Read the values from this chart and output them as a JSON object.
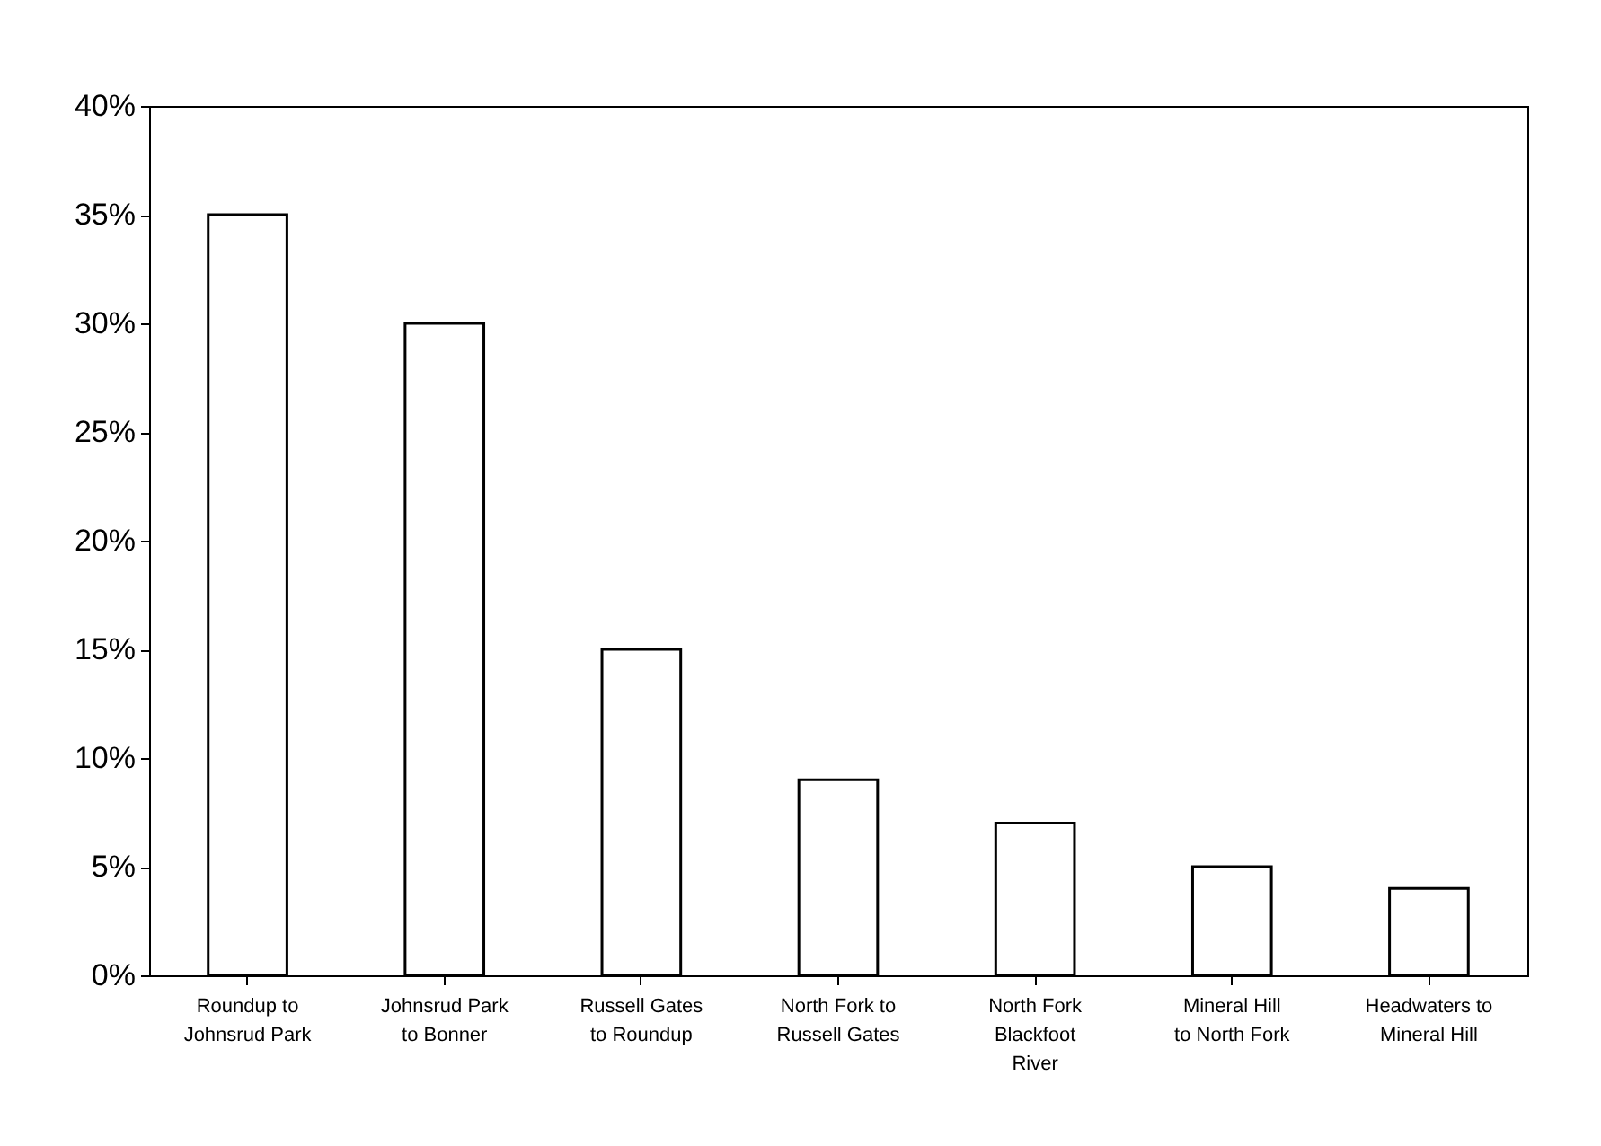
{
  "chart_data": {
    "type": "bar",
    "categories": [
      "Roundup to Johnsrud Park",
      "Johnsrud Park to Bonner",
      "Russell Gates to Roundup",
      "North Fork to Russell Gates",
      "North Fork Blackfoot River",
      "Mineral Hill to North Fork",
      "Headwaters to Mineral Hill"
    ],
    "values": [
      35,
      30,
      15,
      9,
      7,
      5,
      4
    ],
    "color": "#ffffff",
    "ylim": [
      0,
      40
    ],
    "yticks": [
      {
        "value": 0,
        "label": "0%"
      },
      {
        "value": 5,
        "label": "5%"
      },
      {
        "value": 10,
        "label": "10%"
      },
      {
        "value": 15,
        "label": "15%"
      },
      {
        "value": 20,
        "label": "20%"
      },
      {
        "value": 25,
        "label": "25%"
      },
      {
        "value": 30,
        "label": "30%"
      },
      {
        "value": 35,
        "label": "35%"
      },
      {
        "value": 40,
        "label": "40%"
      }
    ],
    "grid": false
  }
}
